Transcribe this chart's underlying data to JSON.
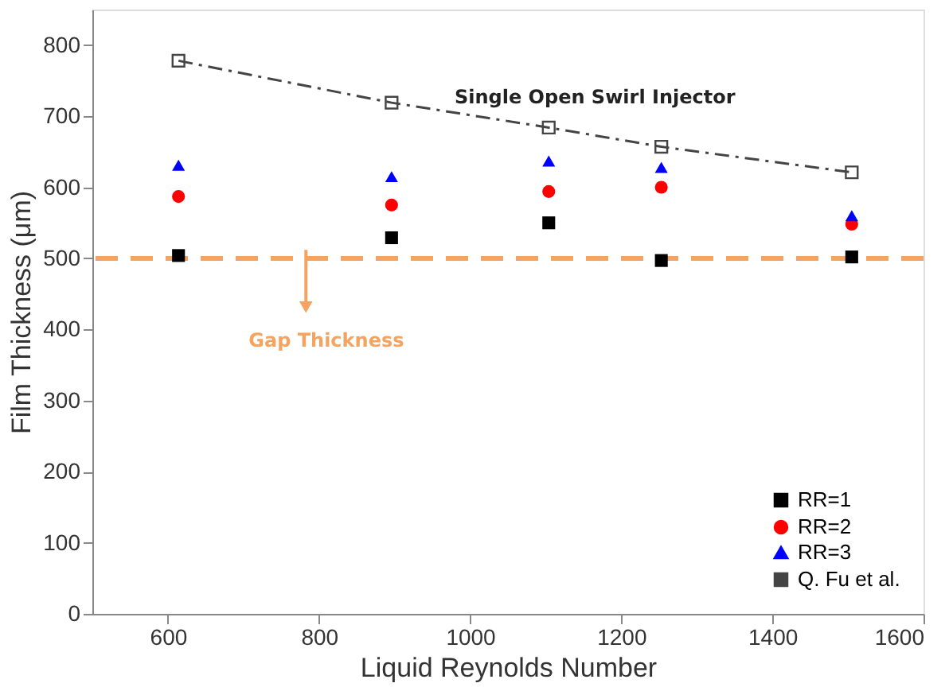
{
  "chart_data": {
    "type": "scatter",
    "xlabel": "Liquid Reynolds Number",
    "ylabel": "Film Thickness (μm)",
    "xlim": [
      500,
      1600
    ],
    "xticks": [
      600,
      800,
      1000,
      1200,
      1400,
      1600
    ],
    "ylim": [
      0,
      850
    ],
    "yticks": [
      0,
      100,
      200,
      300,
      400,
      500,
      600,
      700,
      800
    ],
    "grid": false,
    "legend": "bottom right",
    "series": [
      {
        "name": "RR=1",
        "color": "#000000",
        "marker": "square",
        "x": [
          614,
          896,
          1104,
          1253,
          1505
        ],
        "values": [
          504,
          529,
          550,
          497,
          502
        ]
      },
      {
        "name": "RR=2",
        "color": "#ff0000",
        "marker": "circle",
        "x": [
          614,
          896,
          1104,
          1253,
          1505
        ],
        "values": [
          587,
          575,
          594,
          600,
          548
        ]
      },
      {
        "name": "RR=3",
        "color": "#0000ff",
        "marker": "triangle",
        "x": [
          614,
          896,
          1104,
          1253,
          1505
        ],
        "values": [
          631,
          615,
          637,
          628,
          560
        ]
      },
      {
        "name": "Q. Fu et al.",
        "type": "line",
        "color": "#444444",
        "marker": "square",
        "line_style": "dashed",
        "x": [
          614,
          896,
          1104,
          1253,
          1505
        ],
        "values": [
          778,
          719,
          684,
          657,
          621
        ]
      }
    ],
    "ref_lines": [
      {
        "axis": "y",
        "value": 500,
        "color": "#f4a460",
        "line_style": "dashed"
      }
    ],
    "annotations": [
      "Single Open Swirl Injector",
      "Gap Thickness"
    ]
  }
}
